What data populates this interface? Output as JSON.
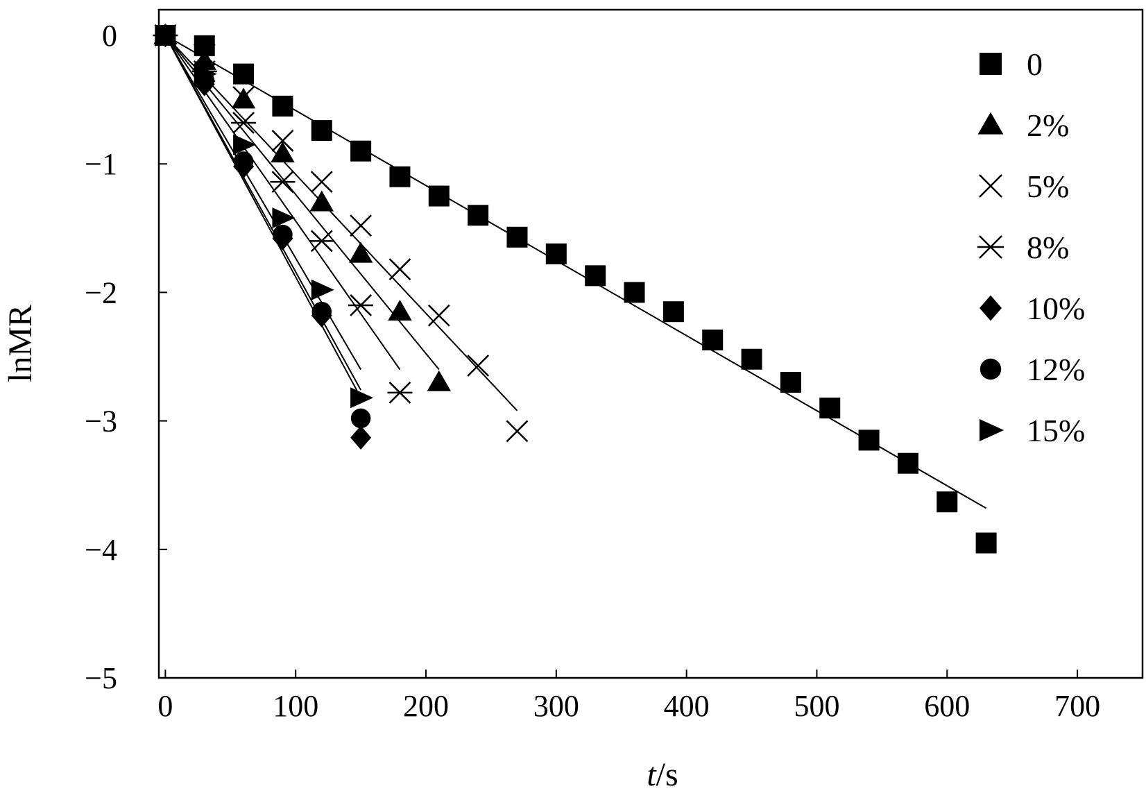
{
  "chart_data": {
    "type": "scatter",
    "title": "",
    "xlabel_italic": "t",
    "xlabel_unit": "/s",
    "ylabel": "lnMR",
    "xlim": [
      -5,
      750
    ],
    "ylim": [
      -5,
      0.2
    ],
    "x_ticks": [
      0,
      100,
      200,
      300,
      400,
      500,
      600,
      700
    ],
    "y_ticks": [
      0,
      -1,
      -2,
      -3,
      -4,
      -5
    ],
    "x_tick_labels": [
      "0",
      "100",
      "200",
      "300",
      "400",
      "500",
      "600",
      "700"
    ],
    "y_tick_labels": [
      "0",
      "−1",
      "−2",
      "−3",
      "−4",
      "−5"
    ],
    "grid": false,
    "legend_position": "top-right",
    "series": [
      {
        "name": "0",
        "marker": "square",
        "x": [
          0,
          30,
          60,
          90,
          120,
          150,
          180,
          210,
          240,
          270,
          300,
          330,
          360,
          390,
          420,
          450,
          480,
          510,
          540,
          570,
          600,
          630
        ],
        "y": [
          0,
          -0.08,
          -0.3,
          -0.55,
          -0.74,
          -0.9,
          -1.1,
          -1.25,
          -1.4,
          -1.57,
          -1.7,
          -1.87,
          -2.0,
          -2.15,
          -2.37,
          -2.52,
          -2.7,
          -2.9,
          -3.15,
          -3.33,
          -3.63,
          -3.95
        ],
        "fit": [
          [
            0,
            0
          ],
          [
            630,
            -3.68
          ]
        ]
      },
      {
        "name": "2%",
        "marker": "triangle",
        "x": [
          0,
          30,
          60,
          90,
          120,
          150,
          180,
          210
        ],
        "y": [
          0,
          -0.2,
          -0.5,
          -0.92,
          -1.3,
          -1.7,
          -2.15,
          -2.7
        ],
        "fit": [
          [
            0,
            0
          ],
          [
            210,
            -2.6
          ]
        ]
      },
      {
        "name": "5%",
        "marker": "x",
        "x": [
          0,
          30,
          60,
          90,
          120,
          150,
          180,
          210,
          240,
          270
        ],
        "y": [
          0,
          -0.15,
          -0.48,
          -0.82,
          -1.14,
          -1.48,
          -1.82,
          -2.18,
          -2.57,
          -3.08
        ],
        "fit": [
          [
            0,
            0
          ],
          [
            270,
            -2.92
          ]
        ]
      },
      {
        "name": "8%",
        "marker": "asterisk",
        "x": [
          0,
          30,
          60,
          90,
          120,
          150,
          180
        ],
        "y": [
          0,
          -0.28,
          -0.68,
          -1.14,
          -1.6,
          -2.1,
          -2.78
        ],
        "fit": [
          [
            0,
            0
          ],
          [
            180,
            -2.6
          ]
        ]
      },
      {
        "name": "10%",
        "marker": "diamond",
        "x": [
          0,
          30,
          60,
          90,
          120,
          150
        ],
        "y": [
          0,
          -0.38,
          -1.02,
          -1.58,
          -2.18,
          -3.13
        ],
        "fit": [
          [
            0,
            0
          ],
          [
            150,
            -2.82
          ]
        ]
      },
      {
        "name": "12%",
        "marker": "circle",
        "x": [
          0,
          30,
          60,
          90,
          120,
          150
        ],
        "y": [
          0,
          -0.35,
          -0.98,
          -1.55,
          -2.15,
          -2.98
        ],
        "fit": [
          [
            0,
            0
          ],
          [
            150,
            -2.76
          ]
        ]
      },
      {
        "name": "15%",
        "marker": "right-triangle",
        "x": [
          0,
          30,
          60,
          90,
          120,
          150
        ],
        "y": [
          0,
          -0.3,
          -0.85,
          -1.42,
          -1.98,
          -2.82
        ],
        "fit": [
          [
            0,
            0
          ],
          [
            150,
            -2.6
          ]
        ]
      }
    ]
  }
}
